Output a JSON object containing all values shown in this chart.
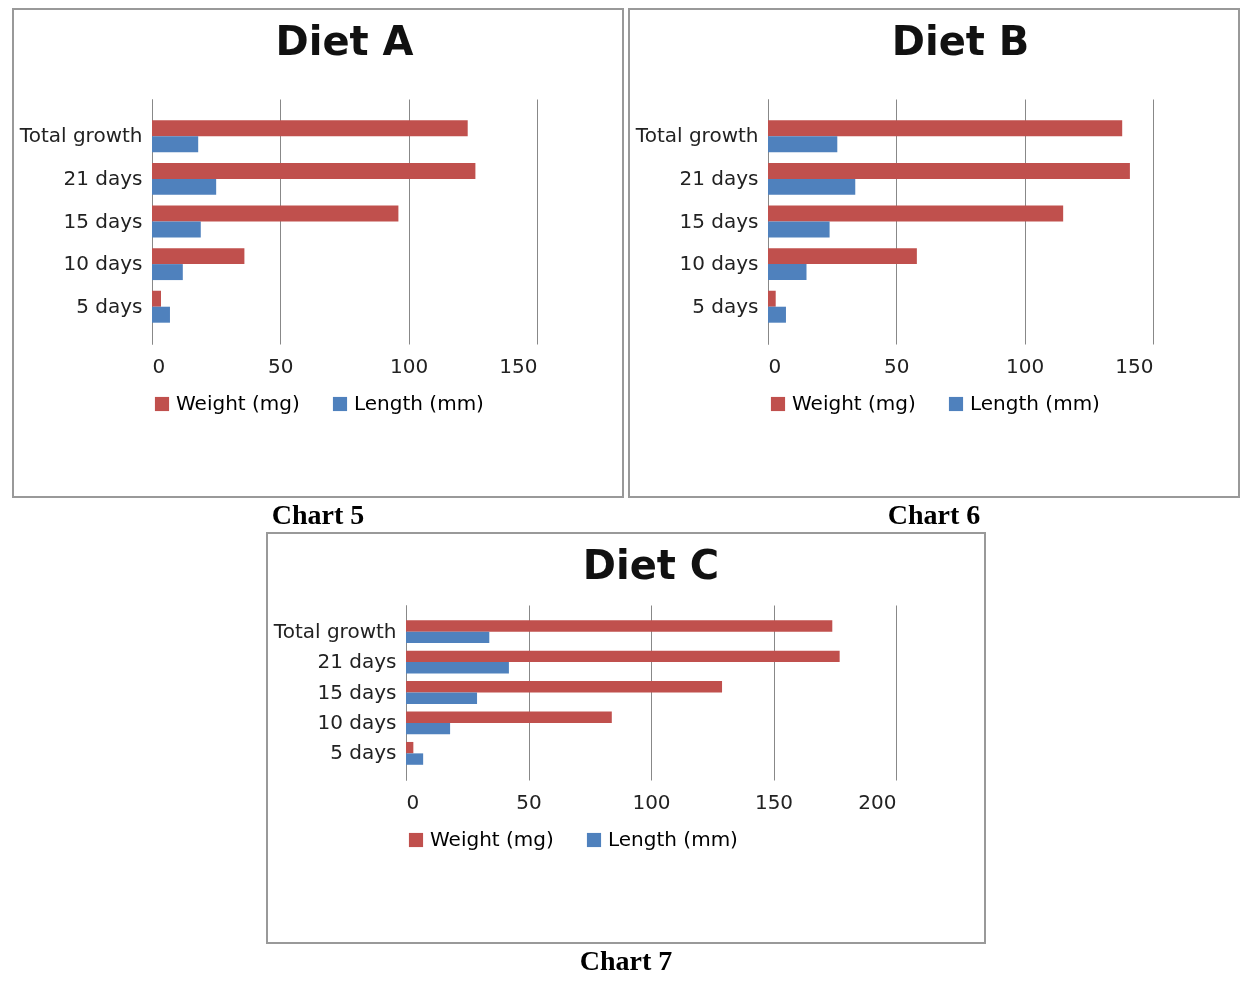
{
  "chart_data": [
    {
      "type": "bar",
      "orientation": "horizontal",
      "title": "Diet A",
      "categories": [
        "Total growth",
        "21 days",
        "15 days",
        "10 days",
        "5 days"
      ],
      "series": [
        {
          "name": "Weight (mg)",
          "color": "#c0504d",
          "values": [
            123,
            126,
            96,
            36,
            3.5
          ]
        },
        {
          "name": "Length (mm)",
          "color": "#4f81bd",
          "values": [
            18,
            25,
            19,
            12,
            7
          ]
        }
      ],
      "xlim": [
        0,
        150
      ],
      "xticks": [
        0,
        50,
        100,
        150
      ],
      "grid": "x",
      "legend": "bottom",
      "annotations": [
        "Chart 5"
      ]
    },
    {
      "type": "bar",
      "orientation": "horizontal",
      "title": "Diet B",
      "categories": [
        "Total growth",
        "21 days",
        "15 days",
        "10 days",
        "5 days"
      ],
      "series": [
        {
          "name": "Weight (mg)",
          "color": "#c0504d",
          "values": [
            138,
            141,
            115,
            58,
            3
          ]
        },
        {
          "name": "Length (mm)",
          "color": "#4f81bd",
          "values": [
            27,
            34,
            24,
            15,
            7
          ]
        }
      ],
      "xlim": [
        0,
        150
      ],
      "xticks": [
        0,
        50,
        100,
        150
      ],
      "grid": "x",
      "legend": "bottom",
      "annotations": [
        "Chart 6"
      ]
    },
    {
      "type": "bar",
      "orientation": "horizontal",
      "title": "Diet C",
      "categories": [
        "Total growth",
        "21 days",
        "15 days",
        "10 days",
        "5 days"
      ],
      "series": [
        {
          "name": "Weight (mg)",
          "color": "#c0504d",
          "values": [
            174,
            177,
            129,
            84,
            3
          ]
        },
        {
          "name": "Length (mm)",
          "color": "#4f81bd",
          "values": [
            34,
            42,
            29,
            18,
            7
          ]
        }
      ],
      "xlim": [
        0,
        200
      ],
      "xticks": [
        0,
        50,
        100,
        150,
        200
      ],
      "grid": "x",
      "legend": "bottom",
      "annotations": [
        "Chart 7"
      ]
    }
  ]
}
